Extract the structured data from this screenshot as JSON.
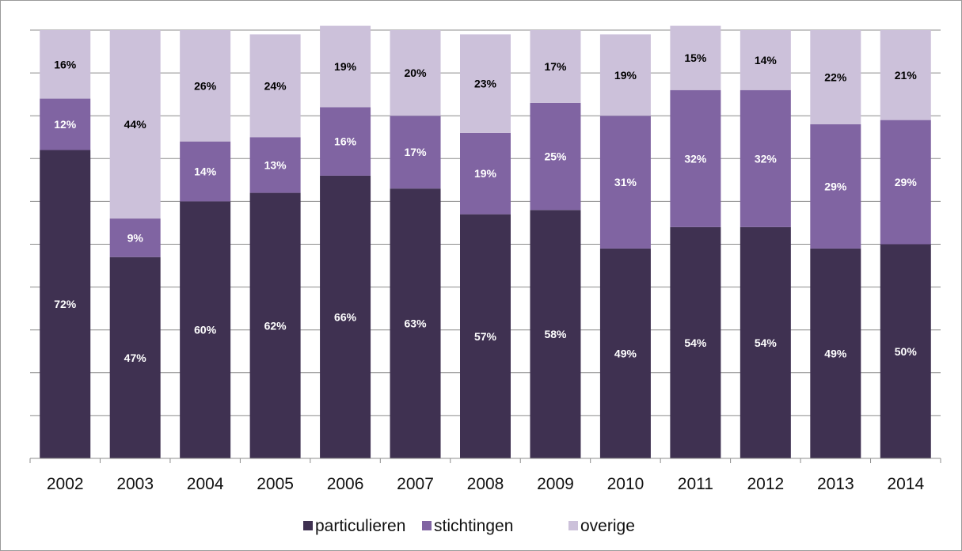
{
  "chart_data": {
    "type": "bar",
    "stacked": true,
    "percent_stacked": true,
    "categories": [
      "2002",
      "2003",
      "2004",
      "2005",
      "2006",
      "2007",
      "2008",
      "2009",
      "2010",
      "2011",
      "2012",
      "2013",
      "2014"
    ],
    "series": [
      {
        "name": "particulieren",
        "color": "#3f3151",
        "label_color": "#ffffff",
        "values": [
          72,
          47,
          60,
          62,
          66,
          63,
          57,
          58,
          49,
          54,
          54,
          49,
          50
        ],
        "labels": [
          "72%",
          "47%",
          "60%",
          "62%",
          "66%",
          "63%",
          "57%",
          "58%",
          "49%",
          "54%",
          "54%",
          "49%",
          "50%"
        ]
      },
      {
        "name": "stichtingen",
        "color": "#8064a2",
        "label_color": "#ffffff",
        "values": [
          12,
          9,
          14,
          13,
          16,
          17,
          19,
          25,
          31,
          32,
          32,
          29,
          29
        ],
        "labels": [
          "12%",
          "9%",
          "14%",
          "13%",
          "16%",
          "17%",
          "19%",
          "25%",
          "31%",
          "32%",
          "32%",
          "29%",
          "29%"
        ]
      },
      {
        "name": "overige",
        "color": "#ccc1da",
        "label_color": "#000000",
        "values": [
          16,
          44,
          26,
          24,
          19,
          20,
          23,
          17,
          19,
          15,
          14,
          22,
          21
        ],
        "labels": [
          "16%",
          "44%",
          "26%",
          "24%",
          "19%",
          "20%",
          "23%",
          "17%",
          "19%",
          "15%",
          "14%",
          "22%",
          "21%"
        ]
      }
    ],
    "ylim": [
      0,
      100
    ],
    "grid": true,
    "legend_position": "bottom",
    "title": "",
    "xlabel": "",
    "ylabel": ""
  }
}
